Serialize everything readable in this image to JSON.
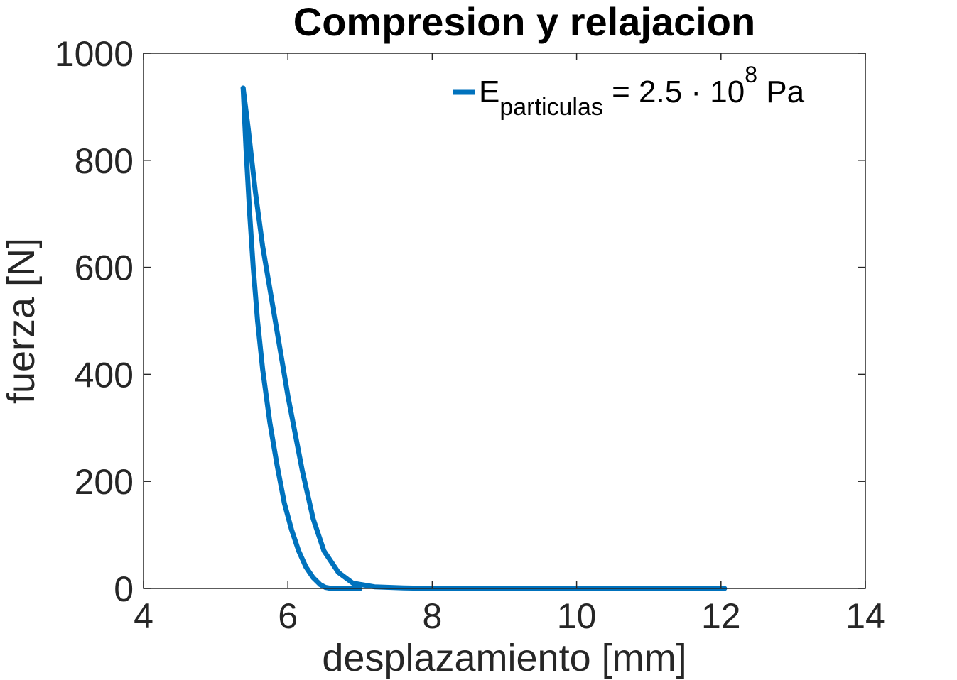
{
  "chart_data": {
    "type": "line",
    "title": "Compresion y relajacion",
    "xlabel": "desplazamiento [mm]",
    "ylabel": "fuerza [N]",
    "xlim": [
      4,
      14
    ],
    "ylim": [
      0,
      1000
    ],
    "xticks": [
      "4",
      "6",
      "8",
      "10",
      "12",
      "14"
    ],
    "yticks": [
      "0",
      "200",
      "400",
      "600",
      "800",
      "1000"
    ],
    "grid": false,
    "legend_position": "top-right",
    "legend": {
      "base": "E",
      "subscript": "particulas",
      "middle": " = 2.5 · 10",
      "superscript": "8",
      "end": " Pa"
    },
    "series": [
      {
        "color": "#0072BD",
        "segments": [
          {
            "x": [
              5.38,
              5.45,
              5.55,
              5.65,
              5.8,
              6.0,
              6.2,
              6.35,
              6.5,
              6.7,
              6.9,
              7.2,
              7.6,
              8.0,
              9.0,
              10.0,
              11.0,
              12.05
            ],
            "y": [
              935,
              860,
              740,
              640,
              520,
              360,
              220,
              130,
              70,
              30,
              10,
              3,
              1,
              0,
              0,
              0,
              0,
              0
            ]
          },
          {
            "x": [
              5.38,
              5.42,
              5.47,
              5.52,
              5.58,
              5.65,
              5.75,
              5.85,
              5.95,
              6.05,
              6.15,
              6.25,
              6.35,
              6.45,
              6.52,
              6.6,
              6.8,
              7.0
            ],
            "y": [
              935,
              820,
              700,
              600,
              500,
              410,
              310,
              230,
              160,
              110,
              70,
              40,
              20,
              7,
              2,
              0,
              0,
              0
            ]
          }
        ]
      }
    ]
  }
}
